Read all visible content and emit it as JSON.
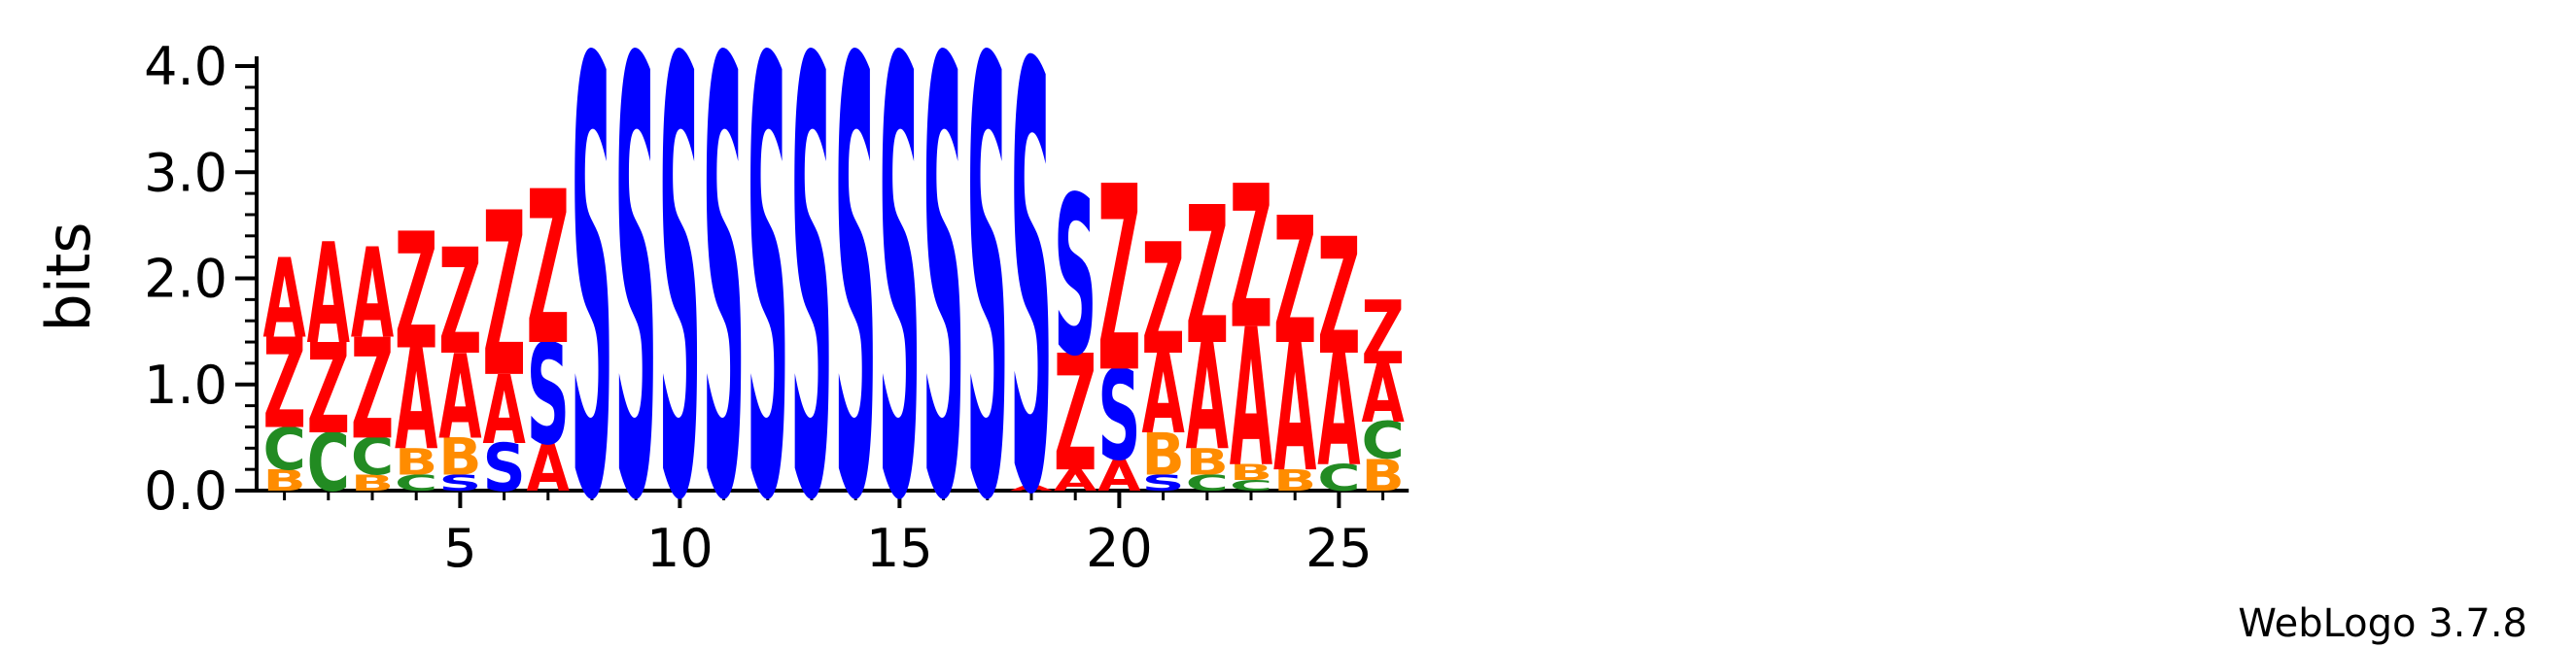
{
  "chart_data": {
    "type": "sequence-logo",
    "ylabel": "bits",
    "ylim": [
      0,
      4.0
    ],
    "yticks": [
      "0.0",
      "1.0",
      "2.0",
      "3.0",
      "4.0"
    ],
    "xticks": [
      5,
      10,
      15,
      20,
      25
    ],
    "colors": {
      "A": "#ff0000",
      "Z": "#ff0000",
      "S": "#0000ff",
      "C": "#228b22",
      "B": "#ff8c00"
    },
    "positions": [
      {
        "pos": 1,
        "stack": [
          {
            "l": "B",
            "h": 0.2
          },
          {
            "l": "C",
            "h": 0.4
          },
          {
            "l": "Z",
            "h": 0.85
          },
          {
            "l": "A",
            "h": 0.75
          }
        ]
      },
      {
        "pos": 2,
        "stack": [
          {
            "l": "C",
            "h": 0.55
          },
          {
            "l": "Z",
            "h": 0.85
          },
          {
            "l": "A",
            "h": 0.95
          }
        ]
      },
      {
        "pos": 3,
        "stack": [
          {
            "l": "B",
            "h": 0.15
          },
          {
            "l": "C",
            "h": 0.35
          },
          {
            "l": "Z",
            "h": 0.95
          },
          {
            "l": "A",
            "h": 0.85
          }
        ]
      },
      {
        "pos": 4,
        "stack": [
          {
            "l": "C",
            "h": 0.15
          },
          {
            "l": "B",
            "h": 0.25
          },
          {
            "l": "A",
            "h": 0.95
          },
          {
            "l": "Z",
            "h": 1.1
          }
        ]
      },
      {
        "pos": 5,
        "stack": [
          {
            "l": "S",
            "h": 0.15
          },
          {
            "l": "B",
            "h": 0.35
          },
          {
            "l": "A",
            "h": 0.8
          },
          {
            "l": "Z",
            "h": 1.0
          }
        ]
      },
      {
        "pos": 6,
        "stack": [
          {
            "l": "S",
            "h": 0.45
          },
          {
            "l": "A",
            "h": 0.65
          },
          {
            "l": "Z",
            "h": 1.55
          }
        ]
      },
      {
        "pos": 7,
        "stack": [
          {
            "l": "A",
            "h": 0.45
          },
          {
            "l": "S",
            "h": 0.95
          },
          {
            "l": "Z",
            "h": 1.45
          }
        ]
      },
      {
        "pos": 8,
        "stack": [
          {
            "l": "S",
            "h": 4.1
          }
        ]
      },
      {
        "pos": 9,
        "stack": [
          {
            "l": "S",
            "h": 4.1
          }
        ]
      },
      {
        "pos": 10,
        "stack": [
          {
            "l": "S",
            "h": 4.1
          }
        ]
      },
      {
        "pos": 11,
        "stack": [
          {
            "l": "S",
            "h": 4.1
          }
        ]
      },
      {
        "pos": 12,
        "stack": [
          {
            "l": "S",
            "h": 4.1
          }
        ]
      },
      {
        "pos": 13,
        "stack": [
          {
            "l": "S",
            "h": 4.1
          }
        ]
      },
      {
        "pos": 14,
        "stack": [
          {
            "l": "S",
            "h": 4.1
          }
        ]
      },
      {
        "pos": 15,
        "stack": [
          {
            "l": "S",
            "h": 4.1
          }
        ]
      },
      {
        "pos": 16,
        "stack": [
          {
            "l": "S",
            "h": 4.1
          }
        ]
      },
      {
        "pos": 17,
        "stack": [
          {
            "l": "S",
            "h": 4.1
          }
        ]
      },
      {
        "pos": 18,
        "stack": [
          {
            "l": "A",
            "h": 0.05
          },
          {
            "l": "S",
            "h": 4.0
          }
        ]
      },
      {
        "pos": 19,
        "stack": [
          {
            "l": "A",
            "h": 0.2
          },
          {
            "l": "Z",
            "h": 1.1
          },
          {
            "l": "S",
            "h": 1.5
          }
        ]
      },
      {
        "pos": 20,
        "stack": [
          {
            "l": "A",
            "h": 0.3
          },
          {
            "l": "S",
            "h": 0.85
          },
          {
            "l": "Z",
            "h": 1.75
          }
        ]
      },
      {
        "pos": 21,
        "stack": [
          {
            "l": "S",
            "h": 0.15
          },
          {
            "l": "B",
            "h": 0.4
          },
          {
            "l": "A",
            "h": 0.75
          },
          {
            "l": "Z",
            "h": 1.05
          }
        ]
      },
      {
        "pos": 22,
        "stack": [
          {
            "l": "C",
            "h": 0.15
          },
          {
            "l": "B",
            "h": 0.25
          },
          {
            "l": "A",
            "h": 1.0
          },
          {
            "l": "Z",
            "h": 1.3
          }
        ]
      },
      {
        "pos": 23,
        "stack": [
          {
            "l": "C",
            "h": 0.1
          },
          {
            "l": "B",
            "h": 0.15
          },
          {
            "l": "A",
            "h": 1.3
          },
          {
            "l": "Z",
            "h": 1.35
          }
        ]
      },
      {
        "pos": 24,
        "stack": [
          {
            "l": "B",
            "h": 0.2
          },
          {
            "l": "A",
            "h": 1.2
          },
          {
            "l": "Z",
            "h": 1.2
          }
        ]
      },
      {
        "pos": 25,
        "stack": [
          {
            "l": "C",
            "h": 0.25
          },
          {
            "l": "A",
            "h": 1.05
          },
          {
            "l": "Z",
            "h": 1.1
          }
        ]
      },
      {
        "pos": 26,
        "stack": [
          {
            "l": "B",
            "h": 0.3
          },
          {
            "l": "C",
            "h": 0.35
          },
          {
            "l": "A",
            "h": 0.55
          },
          {
            "l": "Z",
            "h": 0.6
          }
        ]
      }
    ]
  },
  "credit": "WebLogo 3.7.8"
}
